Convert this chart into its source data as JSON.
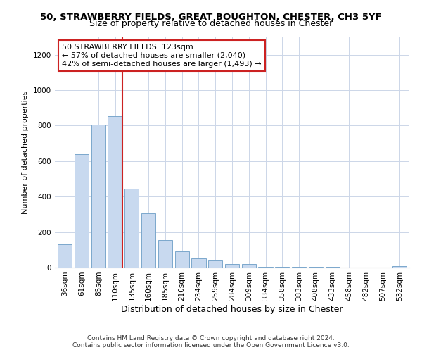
{
  "title1": "50, STRAWBERRY FIELDS, GREAT BOUGHTON, CHESTER, CH3 5YF",
  "title2": "Size of property relative to detached houses in Chester",
  "xlabel": "Distribution of detached houses by size in Chester",
  "ylabel": "Number of detached properties",
  "categories": [
    "36sqm",
    "61sqm",
    "85sqm",
    "110sqm",
    "135sqm",
    "160sqm",
    "185sqm",
    "210sqm",
    "234sqm",
    "259sqm",
    "284sqm",
    "309sqm",
    "334sqm",
    "358sqm",
    "383sqm",
    "408sqm",
    "433sqm",
    "458sqm",
    "482sqm",
    "507sqm",
    "532sqm"
  ],
  "values": [
    130,
    640,
    805,
    855,
    445,
    305,
    155,
    92,
    52,
    40,
    18,
    20,
    5,
    5,
    5,
    2,
    2,
    0,
    0,
    0,
    8
  ],
  "bar_color": "#c8d9ef",
  "bar_edge_color": "#7ba7cc",
  "highlight_color": "#cc2222",
  "annotation_text": "50 STRAWBERRY FIELDS: 123sqm\n← 57% of detached houses are smaller (2,040)\n42% of semi-detached houses are larger (1,493) →",
  "annotation_box_color": "#ffffff",
  "annotation_box_edge_color": "#cc2222",
  "ylim": [
    0,
    1300
  ],
  "yticks": [
    0,
    200,
    400,
    600,
    800,
    1000,
    1200
  ],
  "footer_text": "Contains HM Land Registry data © Crown copyright and database right 2024.\nContains public sector information licensed under the Open Government Licence v3.0.",
  "background_color": "#ffffff",
  "grid_color": "#ccd6e8",
  "title1_fontsize": 9.5,
  "title2_fontsize": 9,
  "xlabel_fontsize": 9,
  "ylabel_fontsize": 8,
  "tick_fontsize": 7.5,
  "annotation_fontsize": 8,
  "footer_fontsize": 6.5
}
